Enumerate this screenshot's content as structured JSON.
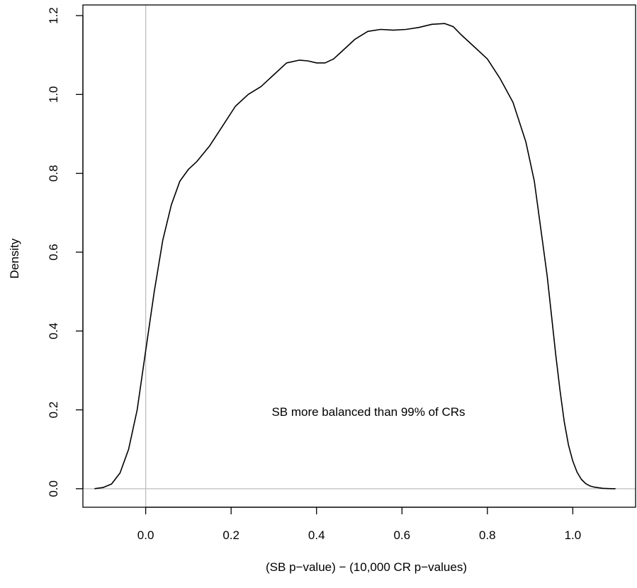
{
  "chart_data": {
    "type": "line",
    "title": "",
    "xlabel": "(SB p−value) − (10,000 CR p−values)",
    "ylabel": "Density",
    "annotation": "SB more balanced than 99% of CRs",
    "xlim": [
      -0.147,
      1.147
    ],
    "ylim": [
      -0.047,
      1.227
    ],
    "xticks": [
      0.0,
      0.2,
      0.4,
      0.6,
      0.8,
      1.0
    ],
    "xtick_labels": [
      "0.0",
      "0.2",
      "0.4",
      "0.6",
      "0.8",
      "1.0"
    ],
    "yticks": [
      0.0,
      0.2,
      0.4,
      0.6,
      0.8,
      1.0,
      1.2
    ],
    "ytick_labels": [
      "0.0",
      "0.2",
      "0.4",
      "0.6",
      "0.8",
      "1.0",
      "1.2"
    ],
    "reference_lines": {
      "vertical_x": 0.0,
      "horizontal_y": 0.0,
      "color": "#bebebe"
    },
    "line_color": "#000000",
    "grid": false,
    "legend": "none",
    "series": [
      {
        "x": [
          -0.12,
          -0.1,
          -0.08,
          -0.06,
          -0.04,
          -0.02,
          0.0,
          0.02,
          0.04,
          0.06,
          0.08,
          0.1,
          0.12,
          0.15,
          0.18,
          0.21,
          0.24,
          0.27,
          0.3,
          0.33,
          0.36,
          0.38,
          0.4,
          0.42,
          0.44,
          0.46,
          0.49,
          0.52,
          0.55,
          0.58,
          0.61,
          0.64,
          0.67,
          0.7,
          0.72,
          0.74,
          0.77,
          0.8,
          0.83,
          0.86,
          0.89,
          0.91,
          0.93,
          0.94,
          0.95,
          0.96,
          0.97,
          0.98,
          0.99,
          1.0,
          1.01,
          1.02,
          1.03,
          1.04,
          1.05,
          1.07,
          1.09,
          1.1
        ],
        "y": [
          0.0,
          0.003,
          0.012,
          0.04,
          0.1,
          0.2,
          0.35,
          0.5,
          0.63,
          0.72,
          0.78,
          0.81,
          0.83,
          0.87,
          0.92,
          0.97,
          1.0,
          1.02,
          1.05,
          1.08,
          1.087,
          1.085,
          1.08,
          1.08,
          1.09,
          1.11,
          1.14,
          1.16,
          1.165,
          1.163,
          1.165,
          1.17,
          1.178,
          1.18,
          1.172,
          1.15,
          1.12,
          1.09,
          1.04,
          0.98,
          0.88,
          0.78,
          0.62,
          0.54,
          0.44,
          0.34,
          0.25,
          0.17,
          0.11,
          0.07,
          0.042,
          0.024,
          0.013,
          0.007,
          0.004,
          0.001,
          0.0,
          0.0
        ]
      }
    ]
  }
}
